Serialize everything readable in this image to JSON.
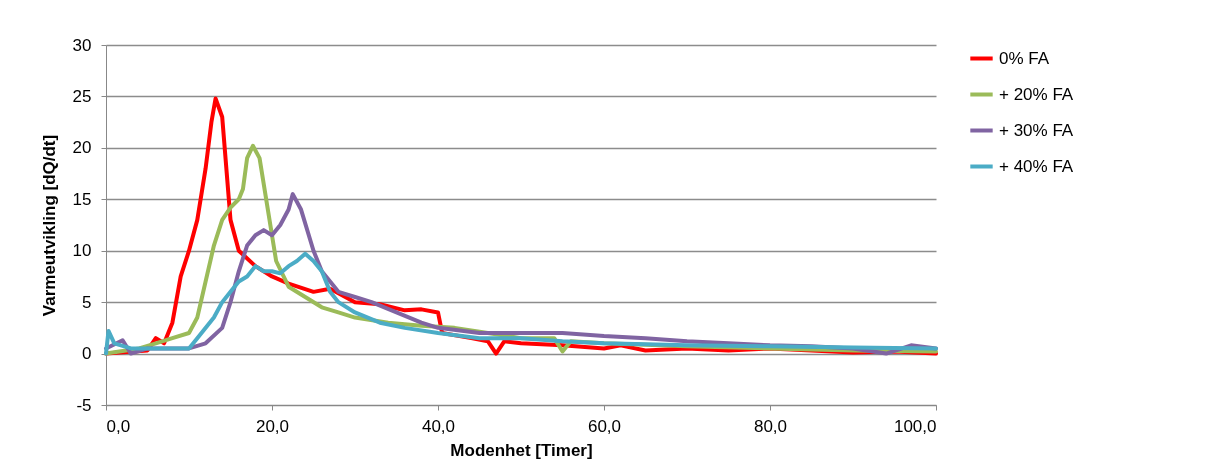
{
  "chart_data": {
    "type": "line",
    "xlabel": "Modenhet [Timer]",
    "ylabel": "Varmeutvikling [dQ/dt]",
    "xlim": [
      0,
      100
    ],
    "xticks": [
      {
        "value": 0,
        "label": "0,0"
      },
      {
        "value": 20,
        "label": "20,0"
      },
      {
        "value": 40,
        "label": "40,0"
      },
      {
        "value": 60,
        "label": "60,0"
      },
      {
        "value": 80,
        "label": "80,0"
      },
      {
        "value": 100,
        "label": "100,0"
      }
    ],
    "ylim": [
      -5,
      30
    ],
    "yticks": [
      -5,
      0,
      5,
      10,
      15,
      20,
      25,
      30
    ],
    "grid": "y",
    "legend": "right",
    "marker": "none",
    "line_style": "solid",
    "series": [
      {
        "name": "0% FA",
        "color": "#ff0000",
        "x": [
          0,
          5,
          6,
          7,
          8,
          9,
          10,
          11,
          12,
          12.7,
          13.2,
          14,
          15,
          16,
          18,
          20,
          22,
          25,
          27,
          30,
          33,
          36,
          38,
          40,
          40.5,
          44,
          46,
          47,
          48,
          50,
          55,
          60,
          62,
          65,
          70,
          75,
          80,
          85,
          90,
          95,
          100
        ],
        "values": [
          0,
          0.3,
          1.5,
          1,
          3,
          7.5,
          10,
          13,
          18,
          22.5,
          24.8,
          23,
          13,
          10,
          8.5,
          7.5,
          6.8,
          6,
          6.3,
          5,
          4.8,
          4.2,
          4.3,
          4,
          2,
          1.5,
          1.2,
          0,
          1.2,
          1,
          0.8,
          0.5,
          0.8,
          0.3,
          0.5,
          0.3,
          0.5,
          0.3,
          0.1,
          0.2,
          0
        ]
      },
      {
        "name": "+ 20% FA",
        "color": "#9bbb59",
        "x": [
          0,
          4,
          6,
          8,
          10,
          11,
          12,
          13,
          14,
          15,
          16,
          16.5,
          17,
          17.7,
          18.5,
          19.5,
          20.5,
          22,
          24,
          26,
          28,
          30,
          34,
          38,
          42,
          46,
          50,
          54,
          55,
          56,
          60,
          70,
          80,
          90,
          100
        ],
        "values": [
          0,
          0.5,
          1,
          1.5,
          2,
          3.5,
          7,
          10.5,
          13,
          14.2,
          15,
          16,
          19,
          20.2,
          19,
          14,
          9,
          6.5,
          5.5,
          4.5,
          4,
          3.5,
          3,
          2.7,
          2.5,
          2,
          1.5,
          1.5,
          0.2,
          1.2,
          1,
          0.7,
          0.5,
          0.3,
          0.2
        ]
      },
      {
        "name": "+ 30% FA",
        "color": "#8064a2",
        "x": [
          0,
          2,
          3,
          5,
          10,
          12,
          14,
          15,
          16,
          17,
          18,
          19,
          20,
          21,
          22,
          22.5,
          23.5,
          25,
          26,
          27,
          28,
          30,
          32,
          35,
          38,
          40,
          45,
          50,
          55,
          60,
          65,
          70,
          75,
          80,
          85,
          90,
          94,
          97,
          100
        ],
        "values": [
          0.5,
          1.3,
          0,
          0.5,
          0.5,
          1,
          2.5,
          5,
          8,
          10.5,
          11.5,
          12,
          11.5,
          12.5,
          14,
          15.5,
          14,
          10,
          8,
          7,
          6,
          5.5,
          5,
          4,
          3,
          2.5,
          2,
          2,
          2,
          1.7,
          1.5,
          1.2,
          1,
          0.8,
          0.7,
          0.5,
          0,
          0.8,
          0.5
        ]
      },
      {
        "name": "+ 40% FA",
        "color": "#4bacc6",
        "x": [
          0,
          0.3,
          1,
          3,
          5,
          10,
          11,
          13,
          14,
          15,
          16,
          17,
          18,
          19,
          20,
          21,
          22,
          23,
          24,
          25,
          26,
          27,
          28,
          30,
          33,
          36,
          40,
          45,
          50,
          55,
          60,
          70,
          80,
          90,
          100
        ],
        "values": [
          0,
          2.2,
          1,
          0.5,
          0.5,
          0.5,
          1.5,
          3.5,
          5,
          6,
          7,
          7.5,
          8.5,
          8,
          8,
          7.8,
          8.5,
          9,
          9.7,
          9,
          8,
          6,
          5,
          4,
          3,
          2.5,
          2,
          1.5,
          1.5,
          1.2,
          1,
          0.8,
          0.7,
          0.6,
          0.5
        ]
      }
    ]
  }
}
